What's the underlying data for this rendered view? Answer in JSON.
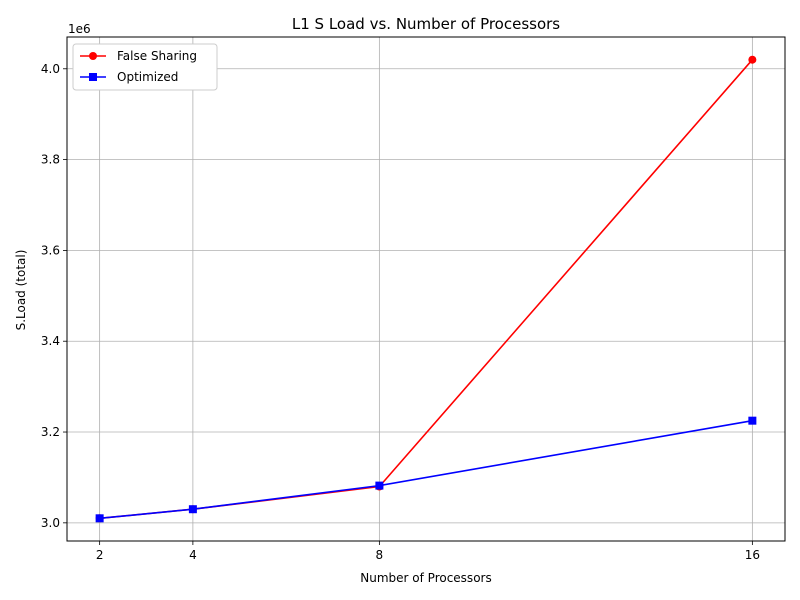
{
  "chart_data": {
    "type": "line",
    "title": "L1 S Load vs. Number of Processors",
    "xlabel": "Number of Processors",
    "ylabel": "S.Load (total)",
    "offset_label": "1e6",
    "x": [
      2,
      4,
      8,
      16
    ],
    "x_ticks": [
      "2",
      "4",
      "8",
      "16"
    ],
    "xlim": [
      1.3,
      16.7
    ],
    "ylim": [
      2960000,
      4070000
    ],
    "y_ticks": [
      3000000,
      3200000,
      3400000,
      3600000,
      3800000,
      4000000
    ],
    "y_tick_labels": [
      "3.0",
      "3.2",
      "3.4",
      "3.6",
      "3.8",
      "4.0"
    ],
    "grid": true,
    "legend_position": "top-left",
    "series": [
      {
        "name": "False Sharing",
        "color": "#ff0000",
        "marker": "circle",
        "values": [
          3010000,
          3030000,
          3080000,
          4020000
        ]
      },
      {
        "name": "Optimized",
        "color": "#0000ff",
        "marker": "square",
        "values": [
          3010000,
          3030000,
          3082000,
          3225000
        ]
      }
    ]
  }
}
